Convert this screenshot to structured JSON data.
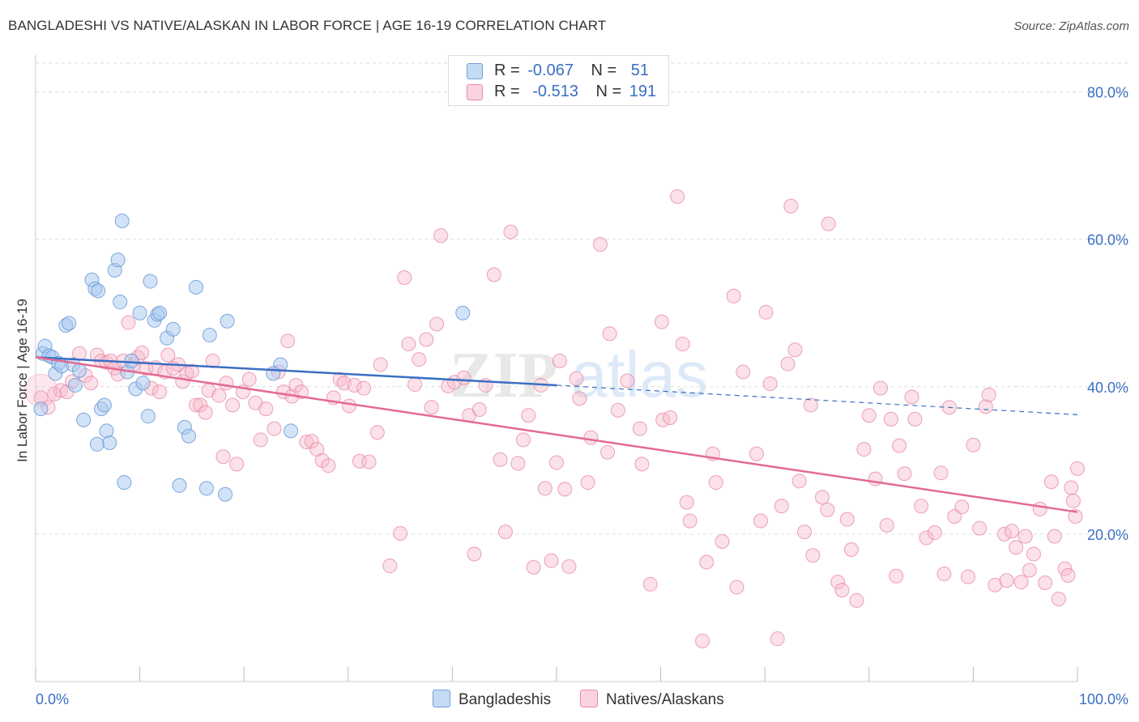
{
  "title": "BANGLADESHI VS NATIVE/ALASKAN IN LABOR FORCE | AGE 16-19 CORRELATION CHART",
  "source": "Source: ZipAtlas.com",
  "colors": {
    "blue_fill": "#a8c8ef",
    "blue_stroke": "#6f9fd8",
    "blue_line": "#3a6fc4",
    "pink_fill": "#f6bccd",
    "pink_stroke": "#e88aa8",
    "pink_line": "#e36a94",
    "axis_text": "#3a6fc4",
    "grid": "#dddddd"
  },
  "legend": {
    "blue": {
      "r_label": "R =",
      "r_value": "-0.067",
      "n_label": "N =",
      "n_value": "51"
    },
    "pink": {
      "r_label": "R =",
      "r_value": "-0.513",
      "n_label": "N =",
      "n_value": "191"
    }
  },
  "bottom_legend": {
    "blue": "Bangladeshis",
    "pink": "Natives/Alaskans"
  },
  "watermark": {
    "zip": "ZIP",
    "atlas": "atlas"
  },
  "chart_data": {
    "type": "scatter",
    "title": "BANGLADESHI VS NATIVE/ALASKAN IN LABOR FORCE | AGE 16-19 CORRELATION CHART",
    "ylabel": "In Labor Force | Age 16-19",
    "xlabel": "",
    "xlim": [
      0,
      100
    ],
    "ylim": [
      0,
      85
    ],
    "x_tick_labels": [
      "0.0%",
      "100.0%"
    ],
    "y_ticks": [
      20,
      40,
      60,
      80
    ],
    "y_tick_labels": [
      "20.0%",
      "40.0%",
      "60.0%",
      "80.0%"
    ],
    "grid": true,
    "series": [
      {
        "name": "Bangladeshis",
        "r": -0.067,
        "n": 51,
        "trend": {
          "x0": 0,
          "y0": 44,
          "x1": 50,
          "y1": 40.2,
          "dash_x1": 100,
          "dash_y1": 36.2
        },
        "points": [
          [
            0.5,
            37
          ],
          [
            0.7,
            44.5
          ],
          [
            0.9,
            45.5
          ],
          [
            1.3,
            44.2
          ],
          [
            1.6,
            44
          ],
          [
            1.9,
            41.8
          ],
          [
            2.2,
            43.2
          ],
          [
            2.5,
            42.8
          ],
          [
            2.9,
            48.3
          ],
          [
            3.2,
            48.6
          ],
          [
            3.6,
            43
          ],
          [
            3.8,
            40.2
          ],
          [
            4.2,
            42.2
          ],
          [
            4.6,
            35.5
          ],
          [
            5.4,
            54.5
          ],
          [
            5.7,
            53.3
          ],
          [
            5.9,
            32.2
          ],
          [
            6.0,
            53
          ],
          [
            6.3,
            37
          ],
          [
            6.6,
            37.5
          ],
          [
            6.8,
            34
          ],
          [
            7.1,
            32.4
          ],
          [
            7.6,
            55.8
          ],
          [
            7.9,
            57.2
          ],
          [
            8.1,
            51.5
          ],
          [
            8.3,
            62.5
          ],
          [
            8.5,
            27
          ],
          [
            8.8,
            42
          ],
          [
            9.2,
            43.5
          ],
          [
            9.6,
            39.7
          ],
          [
            10.0,
            50
          ],
          [
            10.3,
            40.5
          ],
          [
            10.8,
            36
          ],
          [
            11.0,
            54.3
          ],
          [
            11.4,
            49
          ],
          [
            11.7,
            49.8
          ],
          [
            11.9,
            50
          ],
          [
            12.6,
            46.6
          ],
          [
            13.2,
            47.8
          ],
          [
            13.8,
            26.6
          ],
          [
            14.3,
            34.5
          ],
          [
            14.7,
            33.3
          ],
          [
            15.4,
            53.5
          ],
          [
            16.4,
            26.2
          ],
          [
            16.7,
            47
          ],
          [
            18.2,
            25.4
          ],
          [
            18.4,
            48.9
          ],
          [
            23.5,
            43
          ],
          [
            24.5,
            34
          ],
          [
            22.8,
            41.8
          ],
          [
            41,
            50
          ]
        ]
      },
      {
        "name": "Natives/Alaskans",
        "r": -0.513,
        "n": 191,
        "trend": {
          "x0": 0,
          "y0": 44,
          "x1": 100,
          "y1": 23
        },
        "points": [
          [
            0.5,
            38.5
          ],
          [
            1.2,
            37.2
          ],
          [
            1.8,
            39
          ],
          [
            2.4,
            39.5
          ],
          [
            3.0,
            39.3
          ],
          [
            3.5,
            40.7
          ],
          [
            4.2,
            44.5
          ],
          [
            4.8,
            41.5
          ],
          [
            5.3,
            40.5
          ],
          [
            5.9,
            44.3
          ],
          [
            6.3,
            43.5
          ],
          [
            6.8,
            43.3
          ],
          [
            7.2,
            43.5
          ],
          [
            7.6,
            42.5
          ],
          [
            7.9,
            41.7
          ],
          [
            8.4,
            43.5
          ],
          [
            8.9,
            48.7
          ],
          [
            9.4,
            43
          ],
          [
            9.8,
            44
          ],
          [
            10.2,
            44.6
          ],
          [
            10.6,
            42.5
          ],
          [
            11.1,
            39.8
          ],
          [
            11.5,
            42.6
          ],
          [
            11.9,
            39.3
          ],
          [
            12.4,
            42
          ],
          [
            12.7,
            44.3
          ],
          [
            13.2,
            42.5
          ],
          [
            13.7,
            43
          ],
          [
            14.1,
            40.7
          ],
          [
            14.5,
            41.8
          ],
          [
            15.0,
            42.1
          ],
          [
            15.4,
            37.5
          ],
          [
            15.8,
            37.5
          ],
          [
            16.3,
            36.5
          ],
          [
            16.6,
            39.5
          ],
          [
            17.0,
            43.5
          ],
          [
            17.6,
            38.8
          ],
          [
            18.0,
            30.5
          ],
          [
            18.3,
            40.5
          ],
          [
            18.9,
            37.5
          ],
          [
            19.3,
            29.5
          ],
          [
            19.9,
            39.3
          ],
          [
            20.5,
            41
          ],
          [
            21.1,
            37.8
          ],
          [
            21.6,
            32.8
          ],
          [
            22.1,
            37
          ],
          [
            22.9,
            34.3
          ],
          [
            23.3,
            42
          ],
          [
            23.8,
            39.3
          ],
          [
            24.2,
            46.2
          ],
          [
            24.6,
            38.7
          ],
          [
            25.0,
            40.2
          ],
          [
            25.5,
            39.3
          ],
          [
            26.0,
            32.5
          ],
          [
            26.5,
            32.6
          ],
          [
            27.0,
            31.5
          ],
          [
            27.5,
            30
          ],
          [
            28.1,
            29.3
          ],
          [
            28.6,
            38.5
          ],
          [
            29.2,
            41
          ],
          [
            29.6,
            40.5
          ],
          [
            30.1,
            37.4
          ],
          [
            30.6,
            40.2
          ],
          [
            31.1,
            29.9
          ],
          [
            31.5,
            39.8
          ],
          [
            32.0,
            29.8
          ],
          [
            32.8,
            33.8
          ],
          [
            33.1,
            43
          ],
          [
            34.0,
            15.7
          ],
          [
            35.0,
            20.1
          ],
          [
            35.4,
            54.8
          ],
          [
            35.8,
            45.8
          ],
          [
            36.4,
            40.3
          ],
          [
            36.8,
            43.7
          ],
          [
            37.5,
            46.4
          ],
          [
            38.0,
            37.2
          ],
          [
            38.5,
            48.5
          ],
          [
            38.9,
            60.5
          ],
          [
            39.6,
            40.1
          ],
          [
            40.2,
            40.6
          ],
          [
            41.1,
            41.2
          ],
          [
            41.6,
            36.1
          ],
          [
            42.1,
            17.3
          ],
          [
            42.6,
            36.9
          ],
          [
            43.2,
            40.2
          ],
          [
            44.0,
            55.2
          ],
          [
            44.6,
            30.1
          ],
          [
            45.1,
            20.3
          ],
          [
            45.6,
            61
          ],
          [
            46.3,
            29.6
          ],
          [
            46.8,
            32.8
          ],
          [
            47.3,
            36.1
          ],
          [
            47.8,
            15.5
          ],
          [
            48.5,
            40.2
          ],
          [
            48.9,
            26.2
          ],
          [
            49.5,
            16.4
          ],
          [
            50.0,
            29.7
          ],
          [
            50.3,
            43.5
          ],
          [
            50.8,
            26.1
          ],
          [
            51.2,
            15.6
          ],
          [
            51.9,
            41.1
          ],
          [
            52.2,
            38.4
          ],
          [
            53.0,
            27
          ],
          [
            53.3,
            33.1
          ],
          [
            54.2,
            59.3
          ],
          [
            54.9,
            31.1
          ],
          [
            55.1,
            47.2
          ],
          [
            55.9,
            36.8
          ],
          [
            56.8,
            40.8
          ],
          [
            58.0,
            34.3
          ],
          [
            58.2,
            29.5
          ],
          [
            59.0,
            13.2
          ],
          [
            60.1,
            48.8
          ],
          [
            60.2,
            35.5
          ],
          [
            60.9,
            35.8
          ],
          [
            61.6,
            65.8
          ],
          [
            62.1,
            45.8
          ],
          [
            62.5,
            24.3
          ],
          [
            62.8,
            21.8
          ],
          [
            64.0,
            5.5
          ],
          [
            64.4,
            16.2
          ],
          [
            65.0,
            30.9
          ],
          [
            65.3,
            27
          ],
          [
            65.9,
            19
          ],
          [
            67.0,
            52.3
          ],
          [
            67.3,
            12.8
          ],
          [
            67.9,
            42
          ],
          [
            69.2,
            30.9
          ],
          [
            69.6,
            21.8
          ],
          [
            70.1,
            50.1
          ],
          [
            70.5,
            40.4
          ],
          [
            71.2,
            5.8
          ],
          [
            71.6,
            23.8
          ],
          [
            72.2,
            43.1
          ],
          [
            72.5,
            64.5
          ],
          [
            72.9,
            45
          ],
          [
            73.3,
            27.2
          ],
          [
            73.8,
            20.3
          ],
          [
            74.4,
            37.5
          ],
          [
            74.6,
            17.1
          ],
          [
            75.5,
            25
          ],
          [
            76.0,
            23.3
          ],
          [
            76.1,
            62.1
          ],
          [
            77.0,
            13.5
          ],
          [
            77.4,
            12.4
          ],
          [
            77.9,
            22
          ],
          [
            78.3,
            17.9
          ],
          [
            78.8,
            11
          ],
          [
            79.5,
            31.5
          ],
          [
            80.0,
            36.1
          ],
          [
            80.6,
            27.5
          ],
          [
            81.1,
            39.8
          ],
          [
            81.7,
            21.2
          ],
          [
            82.1,
            35.6
          ],
          [
            82.6,
            14.3
          ],
          [
            82.9,
            32
          ],
          [
            83.4,
            28.2
          ],
          [
            84.1,
            38.6
          ],
          [
            84.4,
            35.6
          ],
          [
            85.0,
            23.8
          ],
          [
            85.5,
            19.5
          ],
          [
            86.3,
            20.2
          ],
          [
            86.9,
            28.3
          ],
          [
            87.2,
            14.6
          ],
          [
            87.7,
            37.2
          ],
          [
            88.2,
            22.4
          ],
          [
            88.9,
            23.7
          ],
          [
            89.5,
            14.2
          ],
          [
            90.0,
            32.1
          ],
          [
            90.6,
            20.8
          ],
          [
            91.2,
            37.3
          ],
          [
            91.5,
            38.9
          ],
          [
            92.1,
            13.1
          ],
          [
            93.0,
            20
          ],
          [
            93.2,
            13.7
          ],
          [
            93.7,
            20.4
          ],
          [
            94.1,
            18.2
          ],
          [
            94.6,
            13.5
          ],
          [
            95.0,
            19.7
          ],
          [
            95.4,
            15.1
          ],
          [
            95.8,
            17.3
          ],
          [
            96.4,
            23.4
          ],
          [
            96.9,
            13.4
          ],
          [
            97.5,
            27.1
          ],
          [
            97.8,
            19.7
          ],
          [
            98.2,
            11.2
          ],
          [
            98.8,
            15.3
          ],
          [
            99.1,
            14.4
          ],
          [
            99.4,
            26.3
          ],
          [
            99.6,
            24.5
          ],
          [
            99.8,
            22.4
          ],
          [
            100.0,
            28.9
          ]
        ]
      }
    ]
  }
}
